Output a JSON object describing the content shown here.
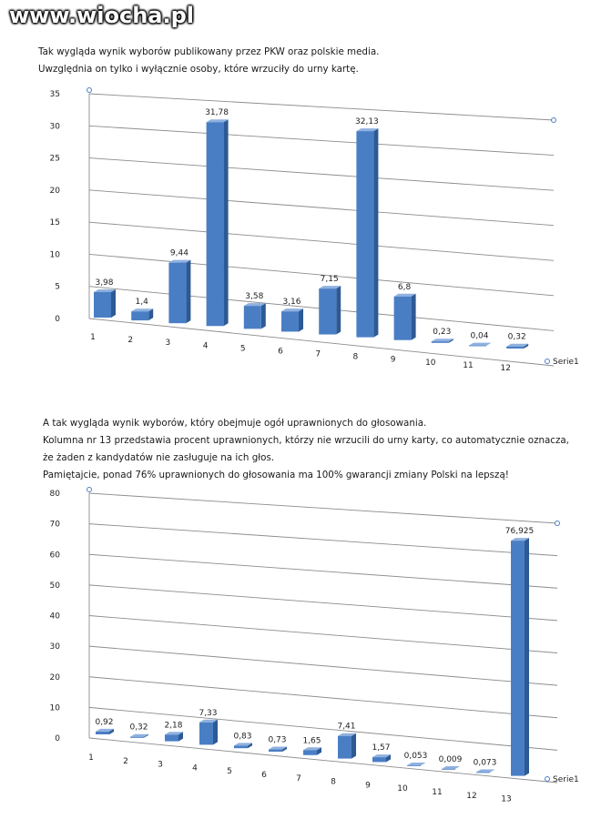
{
  "watermark": "www.wiocha.pl",
  "caption1": {
    "lines": [
      "Tak wygląda wynik wyborów publikowany przez PKW oraz polskie media.",
      "Uwzględnia on tylko i wyłącznie osoby, które wrzuciły do urny kartę."
    ]
  },
  "caption2": {
    "lines": [
      "A tak wygląda wynik wyborów, który obejmuje ogół uprawnionych do głosowania.",
      "Kolumna nr 13 przedstawia procent uprawnionych, którzy nie wrzucili do urny karty, co automatycznie oznacza,",
      "że żaden z kandydatów nie zasługuje na ich głos.",
      "Pamiętajcie, ponad 76% uprawnionych do głosowania ma 100% gwarancji zmiany Polski na lepszą!"
    ]
  },
  "colors": {
    "bar_front": "#4a7ec4",
    "bar_side": "#2d5a94",
    "bar_top": "#8fb1e0",
    "grid": "#8c8c8c"
  },
  "chart_data": [
    {
      "type": "bar",
      "categories": [
        "1",
        "2",
        "3",
        "4",
        "5",
        "6",
        "7",
        "8",
        "9",
        "10",
        "11",
        "12"
      ],
      "series": [
        {
          "name": "Serie1",
          "values": [
            3.98,
            1.4,
            9.44,
            31.78,
            3.58,
            3.16,
            7.15,
            32.13,
            6.8,
            0.23,
            0.04,
            0.32
          ],
          "labels": [
            "3,98",
            "1,4",
            "9,44",
            "31,78",
            "3,58",
            "3,16",
            "7,15",
            "32,13",
            "6,8",
            "0,23",
            "0,04",
            "0,32"
          ]
        }
      ],
      "yticks": [
        "0",
        "5",
        "10",
        "15",
        "20",
        "25",
        "30",
        "35"
      ],
      "ylim": [
        0,
        35
      ],
      "legend": "right",
      "grid": true
    },
    {
      "type": "bar",
      "categories": [
        "1",
        "2",
        "3",
        "4",
        "5",
        "6",
        "7",
        "8",
        "9",
        "10",
        "11",
        "12",
        "13"
      ],
      "series": [
        {
          "name": "Serie1",
          "values": [
            0.92,
            0.32,
            2.18,
            7.33,
            0.83,
            0.73,
            1.65,
            7.41,
            1.57,
            0.053,
            0.009,
            0.073,
            76.925
          ],
          "labels": [
            "0,92",
            "0,32",
            "2,18",
            "7,33",
            "0,83",
            "0,73",
            "1,65",
            "7,41",
            "1,57",
            "0,053",
            "0,009",
            "0,073",
            "76,925"
          ]
        }
      ],
      "yticks": [
        "0",
        "10",
        "20",
        "30",
        "40",
        "50",
        "60",
        "70",
        "80"
      ],
      "ylim": [
        0,
        80
      ],
      "legend": "right",
      "grid": true
    }
  ]
}
